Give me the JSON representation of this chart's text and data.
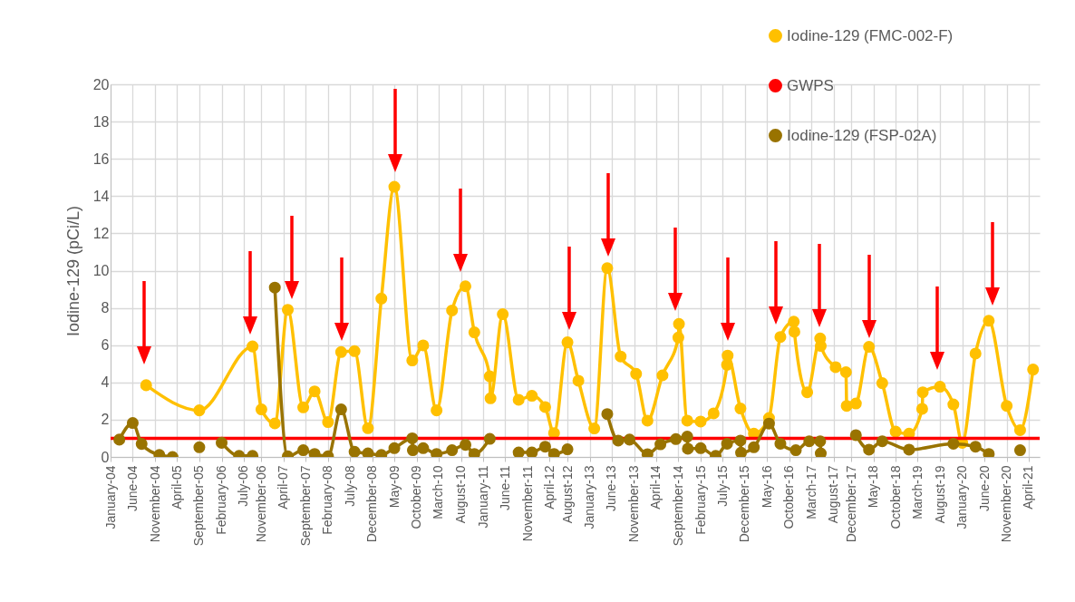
{
  "chart_data": {
    "type": "line",
    "ylabel": "Iodine-129 (pCi/L)",
    "ylim": [
      0,
      20
    ],
    "yticks": [
      0,
      2,
      4,
      6,
      8,
      10,
      12,
      14,
      16,
      18,
      20
    ],
    "xlim": [
      "2004-01-01",
      "2021-06-15"
    ],
    "xticks": [
      {
        "value": "2004-01-01",
        "label": "January-04"
      },
      {
        "value": "2004-06-01",
        "label": "June-04"
      },
      {
        "value": "2004-11-01",
        "label": "November-04"
      },
      {
        "value": "2005-04-01",
        "label": "April-05"
      },
      {
        "value": "2005-09-01",
        "label": "September-05"
      },
      {
        "value": "2006-02-01",
        "label": "February-06"
      },
      {
        "value": "2006-07-01",
        "label": "July-06"
      },
      {
        "value": "2006-11-01",
        "label": "November-06"
      },
      {
        "value": "2007-04-01",
        "label": "April-07"
      },
      {
        "value": "2007-09-01",
        "label": "September-07"
      },
      {
        "value": "2008-02-01",
        "label": "February-08"
      },
      {
        "value": "2008-07-01",
        "label": "July-08"
      },
      {
        "value": "2008-12-01",
        "label": "December-08"
      },
      {
        "value": "2009-05-01",
        "label": "May-09"
      },
      {
        "value": "2009-10-01",
        "label": "October-09"
      },
      {
        "value": "2010-03-01",
        "label": "March-10"
      },
      {
        "value": "2010-08-01",
        "label": "August-10"
      },
      {
        "value": "2011-01-01",
        "label": "January-11"
      },
      {
        "value": "2011-06-01",
        "label": "June-11"
      },
      {
        "value": "2011-11-01",
        "label": "November-11"
      },
      {
        "value": "2012-04-01",
        "label": "April-12"
      },
      {
        "value": "2012-08-01",
        "label": "August-12"
      },
      {
        "value": "2013-01-01",
        "label": "January-13"
      },
      {
        "value": "2013-06-01",
        "label": "June-13"
      },
      {
        "value": "2013-11-01",
        "label": "November-13"
      },
      {
        "value": "2014-04-01",
        "label": "April-14"
      },
      {
        "value": "2014-09-01",
        "label": "September-14"
      },
      {
        "value": "2015-02-01",
        "label": "February-15"
      },
      {
        "value": "2015-07-01",
        "label": "July-15"
      },
      {
        "value": "2015-12-01",
        "label": "December-15"
      },
      {
        "value": "2016-05-01",
        "label": "May-16"
      },
      {
        "value": "2016-10-01",
        "label": "October-16"
      },
      {
        "value": "2017-03-01",
        "label": "March-17"
      },
      {
        "value": "2017-08-01",
        "label": "August-17"
      },
      {
        "value": "2017-12-01",
        "label": "December-17"
      },
      {
        "value": "2018-05-01",
        "label": "May-18"
      },
      {
        "value": "2018-10-01",
        "label": "October-18"
      },
      {
        "value": "2019-03-01",
        "label": "March-19"
      },
      {
        "value": "2019-08-01",
        "label": "August-19"
      },
      {
        "value": "2020-01-01",
        "label": "January-20"
      },
      {
        "value": "2020-06-01",
        "label": "June-20"
      },
      {
        "value": "2020-11-01",
        "label": "November-20"
      },
      {
        "value": "2021-04-01",
        "label": "April-21"
      }
    ],
    "grid": true,
    "legend": "top right",
    "marker": "circle",
    "series": [
      {
        "name": "Iodine-129 (FMC-002-F)",
        "color": "#ffc000",
        "x": [
          "2004-09-01",
          "2005-09-01",
          "2006-09-01",
          "2006-11-01",
          "2007-02-01",
          "2007-05-01",
          "2007-08-15",
          "2007-11-01",
          "2008-02-01",
          "2008-05-01",
          "2008-08-01",
          "2008-11-01",
          "2009-02-01",
          "2009-05-01",
          "2009-09-01",
          "2009-11-15",
          "2010-02-15",
          "2010-06-01",
          "2010-09-01",
          "2010-11-01",
          "2011-02-15",
          "2011-02-20",
          "2011-05-15",
          "2011-09-01",
          "2011-12-01",
          "2012-03-01",
          "2012-05-01",
          "2012-08-01",
          "2012-10-15",
          "2013-02-01",
          "2013-05-01",
          "2013-08-01",
          "2013-11-15",
          "2014-02-01",
          "2014-05-15",
          "2014-09-01",
          "2014-09-05",
          "2014-11-01",
          "2015-02-01",
          "2015-05-01",
          "2015-08-01",
          "2015-08-05",
          "2015-11-01",
          "2016-02-01",
          "2016-05-15",
          "2016-08-01",
          "2016-11-01",
          "2016-11-05",
          "2017-02-01",
          "2017-05-01",
          "2017-05-05",
          "2017-08-15",
          "2017-10-25",
          "2017-10-30",
          "2018-01-01",
          "2018-04-01",
          "2018-07-01",
          "2018-10-01",
          "2019-01-01",
          "2019-04-01",
          "2019-04-05",
          "2019-08-01",
          "2019-11-01",
          "2020-01-01",
          "2020-04-01",
          "2020-07-01",
          "2020-11-01",
          "2021-02-01",
          "2021-05-01"
        ],
        "values": [
          3.85,
          2.5,
          5.93,
          2.55,
          1.8,
          7.9,
          2.66,
          3.52,
          1.87,
          5.63,
          5.68,
          1.54,
          8.5,
          14.5,
          5.18,
          5.99,
          2.5,
          7.86,
          9.16,
          6.69,
          4.33,
          3.15,
          7.66,
          3.07,
          3.28,
          2.68,
          1.28,
          6.15,
          4.09,
          1.53,
          10.13,
          5.39,
          4.46,
          1.95,
          4.38,
          6.41,
          7.14,
          1.95,
          1.9,
          2.34,
          4.94,
          5.44,
          2.6,
          1.25,
          2.09,
          6.44,
          7.26,
          6.72,
          3.47,
          6.36,
          5.96,
          4.82,
          4.55,
          2.74,
          2.87,
          5.91,
          3.96,
          1.36,
          1.25,
          2.58,
          3.47,
          3.77,
          2.82,
          0.76,
          5.55,
          7.31,
          2.74,
          1.44,
          4.69
        ]
      },
      {
        "name": "GWPS",
        "color": "#ff0000",
        "marker": "none",
        "x": [
          "2004-01-01",
          "2021-06-15"
        ],
        "values": [
          1,
          1
        ]
      },
      {
        "name": "Iodine-129 (FSP-02A)",
        "color": "#997300",
        "x": [
          "2004-03-01",
          "2004-06-01",
          "2004-08-01",
          "2004-12-01",
          "2005-03-01",
          "2005-06-01",
          "2005-09-01",
          "2005-12-01",
          "2006-02-01",
          "2006-06-01",
          "2006-09-01",
          "2006-11-01",
          "2007-02-01",
          "2007-05-01",
          "2007-08-15",
          "2007-11-01",
          "2008-02-01",
          "2008-05-01",
          "2008-08-01",
          "2008-11-01",
          "2009-02-01",
          "2009-05-01",
          "2009-09-01",
          "2009-09-05",
          "2009-11-15",
          "2010-02-15",
          "2010-06-01",
          "2010-09-01",
          "2010-11-01",
          "2011-02-15",
          "2011-05-01",
          "2011-09-01",
          "2011-12-01",
          "2012-03-01",
          "2012-05-01",
          "2012-08-01",
          "2012-12-01",
          "2013-05-01",
          "2013-07-15",
          "2013-10-01",
          "2014-02-01",
          "2014-05-01",
          "2014-08-15",
          "2014-11-01",
          "2014-11-05",
          "2015-02-01",
          "2015-05-15",
          "2015-08-01",
          "2015-11-01",
          "2015-11-05",
          "2016-02-01",
          "2016-05-15",
          "2016-08-01",
          "2016-11-15",
          "2017-02-15",
          "2017-05-01",
          "2017-05-05",
          "2017-09-01",
          "2018-01-01",
          "2018-04-01",
          "2018-07-01",
          "2019-01-01",
          "2019-11-01",
          "2020-04-01",
          "2020-07-01",
          "2020-10-01",
          "2021-02-01"
        ],
        "values": [
          0.93,
          1.82,
          0.7,
          0.11,
          0,
          null,
          0.52,
          null,
          0.76,
          0.06,
          0.06,
          null,
          9.09,
          0.03,
          0.36,
          0.16,
          0.03,
          2.55,
          0.28,
          0.19,
          0.11,
          0.47,
          1.0,
          0.36,
          0.47,
          0.16,
          0.36,
          0.65,
          0.16,
          0.97,
          null,
          0.24,
          0.24,
          0.55,
          0.16,
          0.41,
          null,
          2.3,
          0.88,
          0.93,
          0.15,
          0.68,
          0.96,
          1.09,
          0.44,
          0.47,
          0.06,
          0.71,
          0.88,
          0.23,
          0.52,
          1.79,
          0.71,
          0.36,
          0.84,
          0.84,
          0.19,
          null,
          1.17,
          0.39,
          0.84,
          0.39,
          0.71,
          0.55,
          0.16,
          null,
          0.36
        ]
      }
    ]
  }
}
